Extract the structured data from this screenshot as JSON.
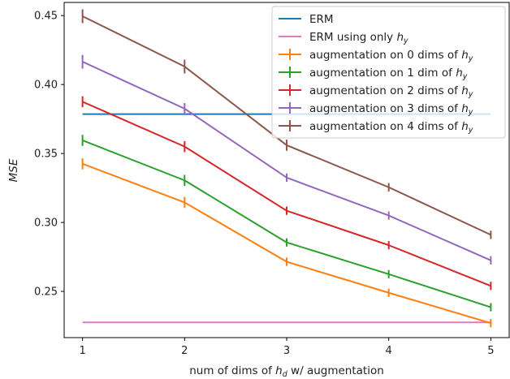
{
  "chart_data": {
    "type": "line",
    "title": "",
    "xlabel": {
      "pre": "num of dims of ",
      "var": "h",
      "sub": "d",
      "post": " w/ augmentation"
    },
    "ylabel": "MSE",
    "x": [
      1,
      2,
      3,
      4,
      5
    ],
    "xticks": [
      "1",
      "2",
      "3",
      "4",
      "5"
    ],
    "xlim": [
      0.82,
      5.18
    ],
    "ylim": [
      0.2165,
      0.4595
    ],
    "yticks": [
      "0.25",
      "0.30",
      "0.35",
      "0.40",
      "0.45"
    ],
    "ytick_values": [
      0.25,
      0.3,
      0.35,
      0.4,
      0.45
    ],
    "legend_position": "top-right",
    "series": [
      {
        "name": "ERM",
        "legend": {
          "pre": "ERM",
          "var": "",
          "sub": ""
        },
        "color": "#1f77b4",
        "values": [
          0.3785,
          0.3785,
          0.3785,
          0.3785,
          0.3785
        ],
        "errors": [
          0,
          0,
          0,
          0,
          0
        ]
      },
      {
        "name": "ERM using only h_y",
        "legend": {
          "pre": "ERM using only ",
          "var": "h",
          "sub": "y"
        },
        "color": "#e377c2",
        "values": [
          0.2275,
          0.2275,
          0.2275,
          0.2275,
          0.2275
        ],
        "errors": [
          0,
          0,
          0,
          0,
          0
        ]
      },
      {
        "name": "augmentation on 0 dims of h_y",
        "legend": {
          "pre": "augmentation on 0 dims of ",
          "var": "h",
          "sub": "y"
        },
        "color": "#ff7f0e",
        "values": [
          0.3425,
          0.3145,
          0.2715,
          0.249,
          0.227
        ],
        "errors": [
          0.004,
          0.004,
          0.003,
          0.003,
          0.003
        ]
      },
      {
        "name": "augmentation on 1 dim of h_y",
        "legend": {
          "pre": "augmentation on 1 dim of ",
          "var": "h",
          "sub": "y"
        },
        "color": "#2ca02c",
        "values": [
          0.3595,
          0.3305,
          0.2855,
          0.2625,
          0.2385
        ],
        "errors": [
          0.004,
          0.004,
          0.003,
          0.003,
          0.003
        ]
      },
      {
        "name": "augmentation on 2 dims of h_y",
        "legend": {
          "pre": "augmentation on 2 dims of ",
          "var": "h",
          "sub": "y"
        },
        "color": "#d62728",
        "values": [
          0.3875,
          0.355,
          0.3085,
          0.2835,
          0.254
        ],
        "errors": [
          0.004,
          0.004,
          0.003,
          0.003,
          0.003
        ]
      },
      {
        "name": "augmentation on 3 dims of h_y",
        "legend": {
          "pre": "augmentation on 3 dims of ",
          "var": "h",
          "sub": "y"
        },
        "color": "#9467bd",
        "values": [
          0.4165,
          0.3825,
          0.3325,
          0.305,
          0.2725
        ],
        "errors": [
          0.005,
          0.004,
          0.003,
          0.003,
          0.003
        ]
      },
      {
        "name": "augmentation on 4 dims of h_y",
        "legend": {
          "pre": "augmentation on 4 dims of ",
          "var": "h",
          "sub": "y"
        },
        "color": "#8c564b",
        "values": [
          0.4495,
          0.413,
          0.356,
          0.3255,
          0.291
        ],
        "errors": [
          0.005,
          0.005,
          0.004,
          0.003,
          0.003
        ]
      }
    ]
  }
}
